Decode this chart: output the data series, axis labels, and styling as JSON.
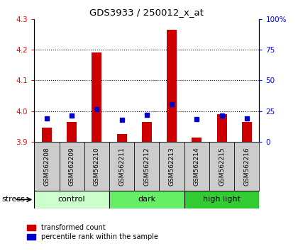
{
  "title": "GDS3933 / 250012_x_at",
  "samples": [
    "GSM562208",
    "GSM562209",
    "GSM562210",
    "GSM562211",
    "GSM562212",
    "GSM562213",
    "GSM562214",
    "GSM562215",
    "GSM562216"
  ],
  "red_values": [
    3.945,
    3.965,
    4.19,
    3.925,
    3.965,
    4.265,
    3.915,
    3.99,
    3.965
  ],
  "blue_values": [
    3.975,
    3.985,
    4.005,
    3.972,
    3.988,
    4.022,
    3.974,
    3.986,
    3.975
  ],
  "ylim_left": [
    3.9,
    4.3
  ],
  "ylim_right": [
    0,
    100
  ],
  "yticks_left": [
    3.9,
    4.0,
    4.1,
    4.2,
    4.3
  ],
  "yticks_right": [
    0,
    25,
    50,
    75,
    100
  ],
  "ytick_right_labels": [
    "0",
    "25",
    "50",
    "75",
    "100%"
  ],
  "groups": [
    {
      "label": "control",
      "start": 0,
      "end": 3,
      "color": "#ccffcc"
    },
    {
      "label": "dark",
      "start": 3,
      "end": 6,
      "color": "#66ee66"
    },
    {
      "label": "high light",
      "start": 6,
      "end": 9,
      "color": "#33cc33"
    }
  ],
  "bar_bottom": 3.9,
  "red_color": "#cc0000",
  "blue_color": "#0000cc",
  "bg_label": "#cccccc",
  "stress_label": "stress",
  "legend_red": "transformed count",
  "legend_blue": "percentile rank within the sample"
}
